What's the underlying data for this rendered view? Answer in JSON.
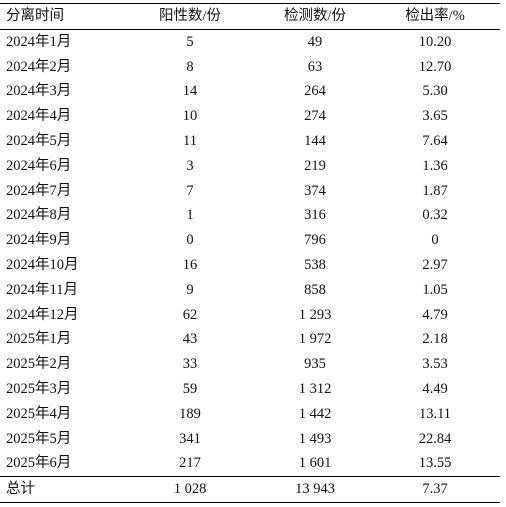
{
  "table": {
    "headers": [
      "分离时间",
      "阳性数/份",
      "检测数/份",
      "检出率/%"
    ],
    "rows": [
      [
        "2024年1月",
        "5",
        "49",
        "10.20"
      ],
      [
        "2024年2月",
        "8",
        "63",
        "12.70"
      ],
      [
        "2024年3月",
        "14",
        "264",
        "5.30"
      ],
      [
        "2024年4月",
        "10",
        "274",
        "3.65"
      ],
      [
        "2024年5月",
        "11",
        "144",
        "7.64"
      ],
      [
        "2024年6月",
        "3",
        "219",
        "1.36"
      ],
      [
        "2024年7月",
        "7",
        "374",
        "1.87"
      ],
      [
        "2024年8月",
        "1",
        "316",
        "0.32"
      ],
      [
        "2024年9月",
        "0",
        "796",
        "0"
      ],
      [
        "2024年10月",
        "16",
        "538",
        "2.97"
      ],
      [
        "2024年11月",
        "9",
        "858",
        "1.05"
      ],
      [
        "2024年12月",
        "62",
        "1 293",
        "4.79"
      ],
      [
        "2025年1月",
        "43",
        "1 972",
        "2.18"
      ],
      [
        "2025年2月",
        "33",
        "935",
        "3.53"
      ],
      [
        "2025年3月",
        "59",
        "1 312",
        "4.49"
      ],
      [
        "2025年4月",
        "189",
        "1 442",
        "13.11"
      ],
      [
        "2025年5月",
        "341",
        "1 493",
        "22.84"
      ],
      [
        "2025年6月",
        "217",
        "1 601",
        "13.55"
      ],
      [
        "总计",
        "1 028",
        "13 943",
        "7.37"
      ]
    ]
  }
}
